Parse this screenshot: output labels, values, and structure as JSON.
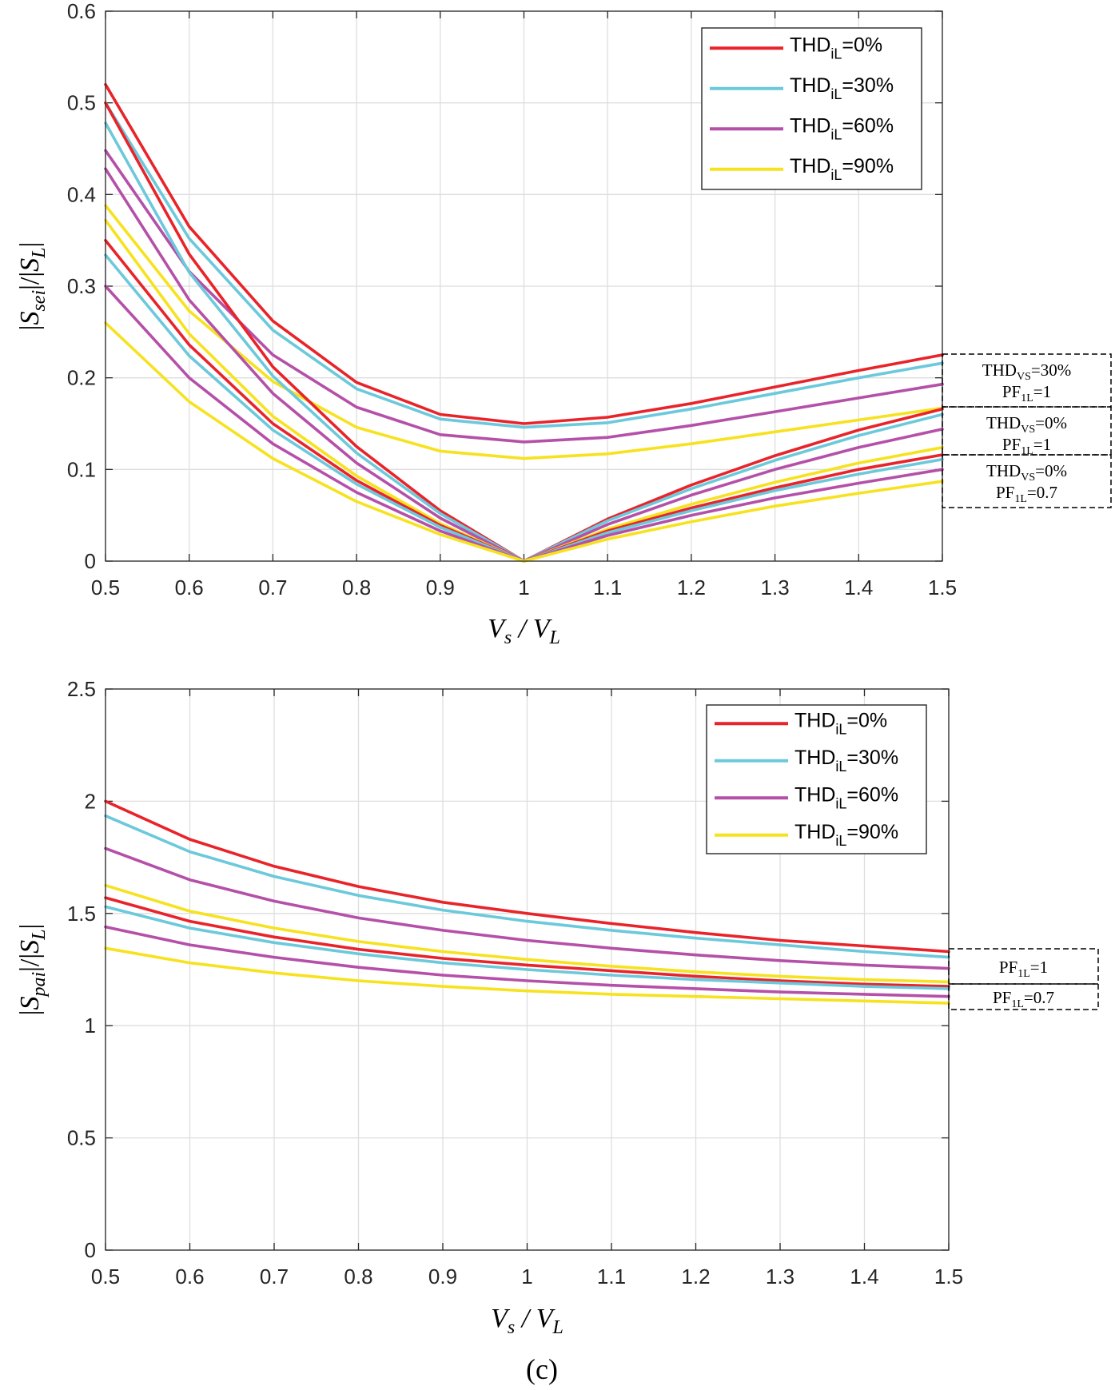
{
  "figure": {
    "caption": "(c)"
  },
  "chart_data": [
    {
      "type": "line",
      "title": "",
      "xlabel": "V_s / V_L",
      "ylabel": "|S_sei|/|S_L|",
      "xlabel_parts": {
        "a": "V",
        "a_sub": "s",
        "sep": " / ",
        "b": "V",
        "b_sub": "L"
      },
      "ylabel_parts": {
        "pre": "|",
        "main": "S",
        "sub": "sei",
        "post": "|/|",
        "main2": "S",
        "sub2": "L",
        "end": "|"
      },
      "xlim": [
        0.5,
        1.5
      ],
      "ylim": [
        0,
        0.6
      ],
      "xticks": [
        0.5,
        0.6,
        0.7,
        0.8,
        0.9,
        1,
        1.1,
        1.2,
        1.3,
        1.4,
        1.5
      ],
      "xtick_labels": [
        "0.5",
        "0.6",
        "0.7",
        "0.8",
        "0.9",
        "1",
        "1.1",
        "1.2",
        "1.3",
        "1.4",
        "1.5"
      ],
      "yticks": [
        0,
        0.1,
        0.2,
        0.3,
        0.4,
        0.5,
        0.6
      ],
      "ytick_labels": [
        "0",
        "0.1",
        "0.2",
        "0.3",
        "0.4",
        "0.5",
        "0.6"
      ],
      "grid": true,
      "legend_position": "top-right",
      "legend": [
        {
          "label": "THD",
          "sub": "iL",
          "suffix": "=0%",
          "color": "#e8242a"
        },
        {
          "label": "THD",
          "sub": "iL",
          "suffix": "=30%",
          "color": "#6cc9db"
        },
        {
          "label": "THD",
          "sub": "iL",
          "suffix": "=60%",
          "color": "#b550a8"
        },
        {
          "label": "THD",
          "sub": "iL",
          "suffix": "=90%",
          "color": "#f6e21f"
        }
      ],
      "x": [
        0.5,
        0.6,
        0.7,
        0.8,
        0.9,
        1.0,
        1.1,
        1.2,
        1.3,
        1.4,
        1.5
      ],
      "series": [
        {
          "name": "THD_iL=0%, THD_vs=30%, PF_1L=1",
          "color": "#e8242a",
          "values": [
            0.52,
            0.365,
            0.262,
            0.195,
            0.16,
            0.15,
            0.157,
            0.172,
            0.19,
            0.208,
            0.225
          ]
        },
        {
          "name": "THD_iL=30%, THD_vs=30%, PF_1L=1",
          "color": "#6cc9db",
          "values": [
            0.5,
            0.352,
            0.252,
            0.188,
            0.155,
            0.146,
            0.151,
            0.166,
            0.183,
            0.2,
            0.216
          ]
        },
        {
          "name": "THD_iL=60%, THD_vs=30%, PF_1L=1",
          "color": "#b550a8",
          "values": [
            0.448,
            0.316,
            0.225,
            0.168,
            0.138,
            0.13,
            0.135,
            0.148,
            0.163,
            0.178,
            0.193
          ]
        },
        {
          "name": "THD_iL=90%, THD_vs=30%, PF_1L=1",
          "color": "#f6e21f",
          "values": [
            0.388,
            0.273,
            0.196,
            0.146,
            0.12,
            0.112,
            0.117,
            0.128,
            0.141,
            0.154,
            0.167
          ]
        },
        {
          "name": "THD_iL=0%, THD_vs=0%, PF_1L=1",
          "color": "#e8242a",
          "values": [
            0.5,
            0.335,
            0.212,
            0.125,
            0.055,
            0.0,
            0.046,
            0.083,
            0.115,
            0.143,
            0.166
          ]
        },
        {
          "name": "THD_iL=30%, THD_vs=0%, PF_1L=1",
          "color": "#6cc9db",
          "values": [
            0.478,
            0.315,
            0.202,
            0.118,
            0.052,
            0.0,
            0.044,
            0.079,
            0.11,
            0.137,
            0.16
          ]
        },
        {
          "name": "THD_iL=60%, THD_vs=0%, PF_1L=1",
          "color": "#b550a8",
          "values": [
            0.428,
            0.285,
            0.183,
            0.107,
            0.047,
            0.0,
            0.04,
            0.072,
            0.1,
            0.124,
            0.144
          ]
        },
        {
          "name": "THD_iL=90%, THD_vs=0%, PF_1L=1",
          "color": "#f6e21f",
          "values": [
            0.372,
            0.248,
            0.158,
            0.093,
            0.041,
            0.0,
            0.035,
            0.062,
            0.086,
            0.107,
            0.124
          ]
        },
        {
          "name": "THD_iL=0%, THD_vs=0%, PF_1L=0.7",
          "color": "#e8242a",
          "values": [
            0.35,
            0.236,
            0.15,
            0.088,
            0.039,
            0.0,
            0.033,
            0.058,
            0.08,
            0.1,
            0.116
          ]
        },
        {
          "name": "THD_iL=30%, THD_vs=0%, PF_1L=0.7",
          "color": "#6cc9db",
          "values": [
            0.334,
            0.224,
            0.143,
            0.084,
            0.037,
            0.0,
            0.031,
            0.055,
            0.077,
            0.095,
            0.111
          ]
        },
        {
          "name": "THD_iL=60%, THD_vs=0%, PF_1L=0.7",
          "color": "#b550a8",
          "values": [
            0.3,
            0.2,
            0.128,
            0.075,
            0.033,
            0.0,
            0.028,
            0.05,
            0.069,
            0.085,
            0.1
          ]
        },
        {
          "name": "THD_iL=90%, THD_vs=0%, PF_1L=0.7",
          "color": "#f6e21f",
          "values": [
            0.26,
            0.174,
            0.112,
            0.065,
            0.029,
            0.0,
            0.024,
            0.043,
            0.06,
            0.074,
            0.087
          ]
        }
      ],
      "annotations": [
        {
          "line1_main": "THD",
          "line1_sub": "VS",
          "line1_suffix": "=30%",
          "line2_main": "PF",
          "line2_sub": "1L",
          "line2_suffix": "=1",
          "y_range": [
            0.17,
            0.225
          ]
        },
        {
          "line1_main": "THD",
          "line1_sub": "VS",
          "line1_suffix": "=0%",
          "line2_main": "PF",
          "line2_sub": "1L",
          "line2_suffix": "=1",
          "y_range": [
            0.115,
            0.17
          ]
        },
        {
          "line1_main": "THD",
          "line1_sub": "VS",
          "line1_suffix": "=0%",
          "line2_main": "PF",
          "line2_sub": "1L",
          "line2_suffix": "=0.7",
          "y_range": [
            0.06,
            0.115
          ]
        }
      ]
    },
    {
      "type": "line",
      "title": "",
      "xlabel": "V_s / V_L",
      "ylabel": "|S_pai|/|S_L|",
      "xlabel_parts": {
        "a": "V",
        "a_sub": "s",
        "sep": " / ",
        "b": "V",
        "b_sub": "L"
      },
      "ylabel_parts": {
        "pre": "|",
        "main": "S",
        "sub": "pai",
        "post": "|/|",
        "main2": "S",
        "sub2": "L",
        "end": "|"
      },
      "xlim": [
        0.5,
        1.5
      ],
      "ylim": [
        0,
        2.5
      ],
      "xticks": [
        0.5,
        0.6,
        0.7,
        0.8,
        0.9,
        1,
        1.1,
        1.2,
        1.3,
        1.4,
        1.5
      ],
      "xtick_labels": [
        "0.5",
        "0.6",
        "0.7",
        "0.8",
        "0.9",
        "1",
        "1.1",
        "1.2",
        "1.3",
        "1.4",
        "1.5"
      ],
      "yticks": [
        0,
        0.5,
        1,
        1.5,
        2,
        2.5
      ],
      "ytick_labels": [
        "0",
        "0.5",
        "1",
        "1.5",
        "2",
        "2.5"
      ],
      "grid": true,
      "legend_position": "top-right",
      "legend": [
        {
          "label": "THD",
          "sub": "iL",
          "suffix": "=0%",
          "color": "#e8242a"
        },
        {
          "label": "THD",
          "sub": "iL",
          "suffix": "=30%",
          "color": "#6cc9db"
        },
        {
          "label": "THD",
          "sub": "iL",
          "suffix": "=60%",
          "color": "#b550a8"
        },
        {
          "label": "THD",
          "sub": "iL",
          "suffix": "=90%",
          "color": "#f6e21f"
        }
      ],
      "x": [
        0.5,
        0.6,
        0.7,
        0.8,
        0.9,
        1.0,
        1.1,
        1.2,
        1.3,
        1.4,
        1.5
      ],
      "series": [
        {
          "name": "THD_iL=0%, PF_1L=1",
          "color": "#e8242a",
          "values": [
            2.0,
            1.83,
            1.71,
            1.62,
            1.55,
            1.5,
            1.455,
            1.415,
            1.38,
            1.355,
            1.33
          ]
        },
        {
          "name": "THD_iL=30%, PF_1L=1",
          "color": "#6cc9db",
          "values": [
            1.935,
            1.775,
            1.665,
            1.58,
            1.515,
            1.465,
            1.425,
            1.39,
            1.36,
            1.33,
            1.305
          ]
        },
        {
          "name": "THD_iL=60%, PF_1L=1",
          "color": "#b550a8",
          "values": [
            1.79,
            1.65,
            1.555,
            1.48,
            1.425,
            1.38,
            1.345,
            1.315,
            1.29,
            1.27,
            1.255
          ]
        },
        {
          "name": "THD_iL=90%, PF_1L=1",
          "color": "#f6e21f",
          "values": [
            1.625,
            1.51,
            1.435,
            1.375,
            1.33,
            1.295,
            1.265,
            1.24,
            1.22,
            1.205,
            1.195
          ]
        },
        {
          "name": "THD_iL=0%, PF_1L=0.7",
          "color": "#e8242a",
          "values": [
            1.57,
            1.465,
            1.395,
            1.34,
            1.3,
            1.27,
            1.245,
            1.22,
            1.2,
            1.185,
            1.175
          ]
        },
        {
          "name": "THD_iL=30%, PF_1L=0.7",
          "color": "#6cc9db",
          "values": [
            1.53,
            1.435,
            1.37,
            1.32,
            1.28,
            1.25,
            1.225,
            1.205,
            1.19,
            1.175,
            1.165
          ]
        },
        {
          "name": "THD_iL=60%, PF_1L=0.7",
          "color": "#b550a8",
          "values": [
            1.44,
            1.36,
            1.305,
            1.26,
            1.225,
            1.2,
            1.18,
            1.165,
            1.15,
            1.14,
            1.13
          ]
        },
        {
          "name": "THD_iL=90%, PF_1L=0.7",
          "color": "#f6e21f",
          "values": [
            1.345,
            1.28,
            1.235,
            1.2,
            1.175,
            1.155,
            1.14,
            1.13,
            1.12,
            1.11,
            1.1
          ]
        }
      ],
      "annotations": [
        {
          "line1_main": "PF",
          "line1_sub": "1L",
          "line1_suffix": "=1",
          "y_range": [
            1.19,
            1.34
          ]
        },
        {
          "line1_main": "PF",
          "line1_sub": "1L",
          "line1_suffix": "=0.7",
          "y_range": [
            1.1,
            1.19
          ]
        }
      ]
    }
  ]
}
